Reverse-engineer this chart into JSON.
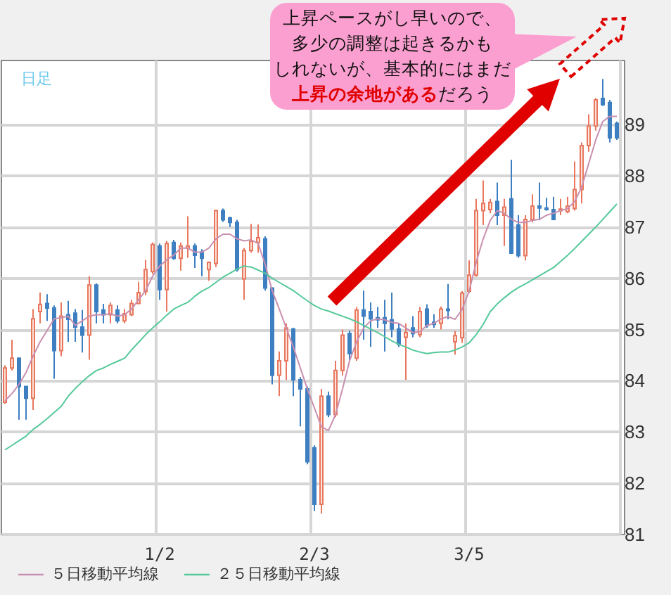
{
  "chart_data": {
    "type": "candlestick",
    "title": "日足",
    "categories": [
      null,
      null,
      null,
      null,
      null,
      null,
      null,
      null,
      null,
      null,
      null,
      null,
      null,
      null,
      null,
      null,
      null,
      null,
      null,
      null,
      null,
      null,
      "1/2",
      null,
      null,
      null,
      null,
      null,
      null,
      null,
      null,
      null,
      null,
      null,
      null,
      null,
      null,
      null,
      null,
      null,
      null,
      null,
      null,
      null,
      "2/3",
      null,
      null,
      null,
      null,
      null,
      null,
      null,
      null,
      null,
      null,
      null,
      null,
      null,
      null,
      null,
      null,
      null,
      null,
      null,
      null,
      null,
      "3/5",
      null,
      null,
      null,
      null,
      null,
      null,
      null,
      null,
      null,
      null,
      null,
      null,
      null,
      null,
      null,
      null,
      null,
      null,
      null,
      null,
      null
    ],
    "ohlc": [
      [
        83.58,
        84.3,
        83.55,
        84.25
      ],
      [
        84.25,
        84.8,
        84.2,
        84.44
      ],
      [
        84.44,
        84.44,
        83.24,
        83.89
      ],
      [
        83.89,
        83.89,
        83.24,
        83.66
      ],
      [
        83.66,
        85.4,
        83.43,
        85.21
      ],
      [
        85.35,
        85.72,
        85.12,
        85.49
      ],
      [
        85.51,
        85.69,
        85.17,
        85.42
      ],
      [
        85.42,
        85.47,
        84.04,
        84.59
      ],
      [
        84.59,
        85.53,
        84.48,
        85.26
      ],
      [
        85.29,
        85.56,
        84.76,
        85.2
      ],
      [
        85.32,
        85.4,
        84.76,
        85.05
      ],
      [
        85.05,
        85.38,
        84.55,
        84.89
      ],
      [
        84.89,
        86.04,
        84.41,
        85.87
      ],
      [
        85.87,
        85.9,
        85.12,
        85.35
      ],
      [
        85.38,
        85.5,
        85.12,
        85.29
      ],
      [
        85.29,
        85.53,
        85.12,
        85.47
      ],
      [
        85.38,
        85.47,
        85.12,
        85.17
      ],
      [
        85.17,
        85.4,
        85.12,
        85.31
      ],
      [
        85.29,
        85.58,
        85.26,
        85.51
      ],
      [
        85.51,
        85.93,
        85.49,
        85.72
      ],
      [
        85.74,
        86.36,
        85.67,
        86.17
      ],
      [
        86.13,
        86.7,
        86.08,
        86.66
      ],
      [
        86.63,
        86.68,
        85.58,
        85.78
      ],
      [
        85.78,
        86.73,
        85.35,
        86.68
      ],
      [
        86.7,
        86.75,
        86.36,
        86.39
      ],
      [
        86.39,
        86.7,
        86.15,
        86.63
      ],
      [
        86.59,
        87.21,
        86.4,
        86.63
      ],
      [
        86.63,
        86.68,
        86.2,
        86.45
      ],
      [
        86.51,
        86.57,
        86.04,
        86.39
      ],
      [
        86.17,
        86.33,
        85.95,
        86.31
      ],
      [
        86.29,
        87.34,
        86.22,
        87.32
      ],
      [
        87.32,
        87.36,
        87.1,
        87.14
      ],
      [
        87.18,
        87.2,
        87.0,
        87.09
      ],
      [
        87.09,
        87.14,
        86.13,
        86.17
      ],
      [
        85.99,
        86.59,
        85.58,
        86.54
      ],
      [
        86.54,
        87.06,
        86.5,
        86.72
      ],
      [
        86.7,
        87.05,
        86.5,
        86.79
      ],
      [
        86.77,
        86.82,
        85.76,
        85.81
      ],
      [
        85.81,
        85.81,
        83.93,
        84.11
      ],
      [
        84.11,
        84.57,
        83.7,
        84.39
      ],
      [
        84.39,
        85.12,
        84.02,
        85.03
      ],
      [
        85.01,
        85.03,
        83.7,
        84.02
      ],
      [
        84.02,
        84.07,
        83.11,
        83.84
      ],
      [
        83.84,
        83.89,
        82.37,
        82.42
      ],
      [
        82.69,
        82.74,
        81.46,
        81.59
      ],
      [
        81.59,
        83.84,
        81.41,
        83.7
      ],
      [
        83.7,
        83.79,
        83.29,
        83.34
      ],
      [
        83.34,
        84.39,
        83.29,
        84.2
      ],
      [
        84.2,
        85.0,
        84.1,
        84.89
      ],
      [
        84.92,
        84.98,
        84.39,
        84.53
      ],
      [
        84.44,
        85.44,
        84.39,
        85.38
      ],
      [
        85.38,
        85.76,
        84.8,
        85.26
      ],
      [
        85.35,
        85.53,
        84.66,
        85.21
      ],
      [
        85.23,
        85.44,
        85.03,
        85.19
      ],
      [
        85.23,
        85.58,
        84.57,
        85.12
      ],
      [
        85.19,
        85.72,
        84.85,
        85.01
      ],
      [
        85.01,
        85.12,
        84.66,
        84.71
      ],
      [
        84.85,
        85.12,
        84.02,
        84.94
      ],
      [
        85.03,
        85.26,
        84.85,
        84.92
      ],
      [
        84.9,
        85.44,
        84.85,
        85.35
      ],
      [
        85.4,
        85.49,
        85.03,
        85.08
      ],
      [
        85.14,
        85.3,
        85.03,
        85.1
      ],
      [
        85.12,
        85.45,
        85.0,
        85.4
      ],
      [
        85.4,
        85.89,
        85.2,
        85.37
      ],
      [
        84.76,
        84.97,
        84.51,
        84.88
      ],
      [
        84.84,
        85.75,
        84.74,
        85.71
      ],
      [
        85.75,
        86.35,
        85.71,
        86.06
      ],
      [
        86.06,
        87.55,
        86.03,
        87.32
      ],
      [
        87.32,
        87.91,
        87.04,
        87.46
      ],
      [
        87.34,
        87.55,
        87.27,
        87.48
      ],
      [
        87.5,
        87.87,
        87.04,
        87.23
      ],
      [
        87.23,
        87.55,
        86.63,
        87.39
      ],
      [
        87.55,
        88.31,
        86.49,
        86.49
      ],
      [
        87.04,
        87.23,
        86.4,
        86.44
      ],
      [
        86.44,
        87.23,
        86.35,
        87.15
      ],
      [
        87.15,
        87.64,
        87.09,
        87.41
      ],
      [
        87.41,
        87.87,
        87.13,
        87.37
      ],
      [
        87.37,
        87.57,
        87.32,
        87.34
      ],
      [
        87.34,
        87.59,
        87.13,
        87.15
      ],
      [
        87.32,
        87.55,
        87.23,
        87.35
      ],
      [
        87.3,
        87.59,
        87.27,
        87.41
      ],
      [
        87.36,
        88.28,
        87.32,
        87.73
      ],
      [
        87.73,
        88.65,
        87.46,
        88.59
      ],
      [
        88.59,
        89.2,
        88.47,
        88.97
      ],
      [
        88.97,
        89.52,
        88.88,
        89.48
      ],
      [
        89.51,
        89.89,
        89.36,
        89.39
      ],
      [
        89.43,
        89.48,
        88.65,
        88.74
      ],
      [
        89.02,
        89.06,
        88.7,
        88.74
      ]
    ],
    "series": [
      {
        "name": "５日移動平均線",
        "type": "line",
        "color": "#c98fb0",
        "values": [
          83.61,
          83.75,
          83.93,
          84.16,
          84.48,
          84.76,
          84.98,
          85.21,
          85.23,
          85.26,
          85.08,
          85.17,
          85.26,
          85.29,
          85.29,
          85.31,
          85.26,
          85.29,
          85.4,
          85.58,
          85.76,
          86.04,
          86.24,
          86.36,
          86.45,
          86.59,
          86.59,
          86.51,
          86.51,
          86.59,
          86.77,
          86.86,
          86.86,
          86.77,
          86.73,
          86.75,
          86.68,
          86.27,
          85.76,
          85.4,
          85.03,
          84.66,
          84.25,
          83.84,
          83.47,
          83.1,
          83.03,
          83.34,
          83.84,
          84.39,
          84.76,
          85.03,
          85.17,
          85.21,
          85.19,
          85.14,
          85.12,
          85.03,
          84.94,
          84.96,
          85.08,
          85.12,
          85.21,
          85.25,
          85.2,
          85.39,
          85.75,
          86.31,
          86.77,
          87.13,
          87.32,
          87.27,
          87.15,
          87.09,
          87.09,
          87.13,
          87.15,
          87.23,
          87.27,
          87.32,
          87.36,
          87.5,
          87.78,
          88.24,
          88.7,
          89.06,
          89.16,
          89.16
        ]
      },
      {
        "name": "２５日移動平均線",
        "type": "line",
        "color": "#55c99a",
        "values": [
          82.65,
          82.74,
          82.83,
          82.92,
          83.05,
          83.15,
          83.26,
          83.38,
          83.5,
          83.7,
          83.85,
          83.98,
          84.1,
          84.2,
          84.25,
          84.32,
          84.38,
          84.44,
          84.6,
          84.75,
          84.9,
          85.03,
          85.15,
          85.28,
          85.4,
          85.47,
          85.53,
          85.65,
          85.75,
          85.82,
          85.92,
          86.02,
          86.1,
          86.18,
          86.24,
          86.22,
          86.16,
          86.1,
          86.0,
          85.92,
          85.84,
          85.76,
          85.66,
          85.56,
          85.47,
          85.4,
          85.36,
          85.31,
          85.26,
          85.21,
          85.15,
          85.08,
          85.01,
          84.94,
          84.86,
          84.78,
          84.71,
          84.66,
          84.6,
          84.56,
          84.53,
          84.55,
          84.56,
          84.56,
          84.6,
          84.66,
          84.74,
          84.9,
          85.1,
          85.35,
          85.5,
          85.62,
          85.73,
          85.82,
          85.89,
          85.97,
          86.05,
          86.13,
          86.21,
          86.33,
          86.45,
          86.58,
          86.72,
          86.86,
          87.0,
          87.15,
          87.3,
          87.45
        ]
      }
    ],
    "ylim": [
      81,
      90.25
    ],
    "yticks": [
      81,
      82,
      83,
      84,
      85,
      86,
      87,
      88,
      89
    ],
    "grid": true,
    "legend": "bottom left",
    "marker": "none",
    "annotations": [
      "上昇ペースがし早いので、",
      "多少の調整は起きるかも",
      "しれないが、基本的にはまだ",
      "上昇の余地がある",
      "だろう"
    ]
  }
}
